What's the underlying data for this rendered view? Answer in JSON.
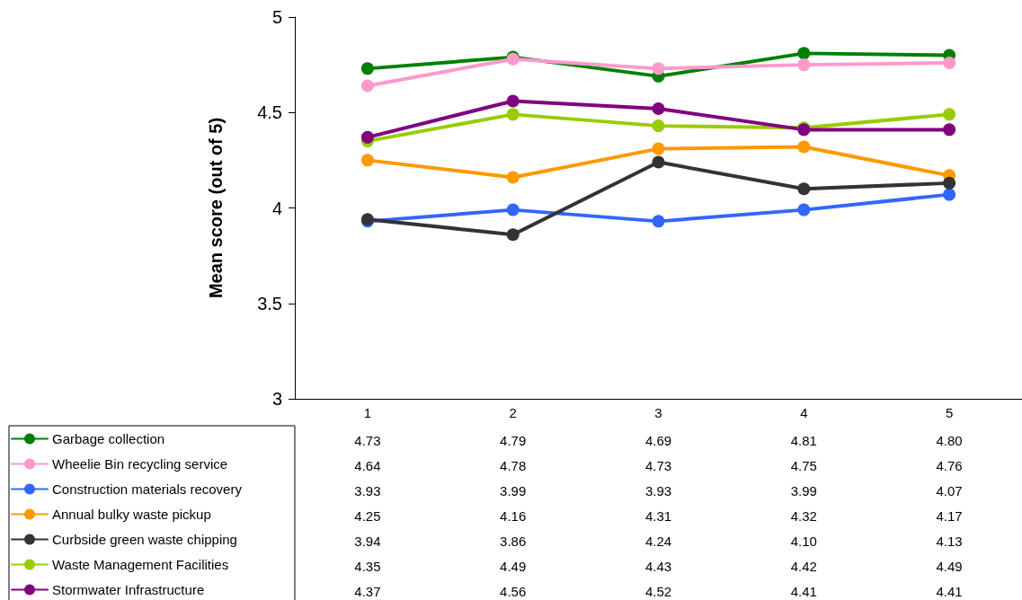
{
  "chart_data": {
    "type": "line",
    "ylabel": "Mean score (out of 5)",
    "categories": [
      "1",
      "2",
      "3",
      "4",
      "5"
    ],
    "ylim": [
      3,
      5
    ],
    "yticks": [
      3,
      3.5,
      4,
      4.5,
      5
    ],
    "grid": false,
    "legend": "bottom left",
    "marker": "circle",
    "line_style": "solid",
    "series": [
      {
        "name": "Garbage collection",
        "color": "#008000",
        "values": [
          4.73,
          4.79,
          4.69,
          4.81,
          4.8
        ],
        "value_labels": [
          "4.73",
          "4.79",
          "4.69",
          "4.81",
          "4.80"
        ]
      },
      {
        "name": "Wheelie Bin recycling service",
        "color": "#ff99cc",
        "values": [
          4.64,
          4.78,
          4.73,
          4.75,
          4.76
        ],
        "value_labels": [
          "4.64",
          "4.78",
          "4.73",
          "4.75",
          "4.76"
        ]
      },
      {
        "name": "Construction materials recovery",
        "color": "#3366ff",
        "values": [
          3.93,
          3.99,
          3.93,
          3.99,
          4.07
        ],
        "value_labels": [
          "3.93",
          "3.99",
          "3.93",
          "3.99",
          "4.07"
        ]
      },
      {
        "name": "Annual bulky waste pickup",
        "color": "#ff9900",
        "values": [
          4.25,
          4.16,
          4.31,
          4.32,
          4.17
        ],
        "value_labels": [
          "4.25",
          "4.16",
          "4.31",
          "4.32",
          "4.17"
        ]
      },
      {
        "name": "Curbside green waste chipping",
        "color": "#333333",
        "values": [
          3.94,
          3.86,
          4.24,
          4.1,
          4.13
        ],
        "value_labels": [
          "3.94",
          "3.86",
          "4.24",
          "4.10",
          "4.13"
        ]
      },
      {
        "name": "Waste Management Facilities",
        "color": "#99cc00",
        "values": [
          4.35,
          4.49,
          4.43,
          4.42,
          4.49
        ],
        "value_labels": [
          "4.35",
          "4.49",
          "4.43",
          "4.42",
          "4.49"
        ]
      },
      {
        "name": "Stormwater Infrastructure",
        "color": "#800080",
        "values": [
          4.37,
          4.56,
          4.52,
          4.41,
          4.41
        ],
        "value_labels": [
          "4.37",
          "4.56",
          "4.52",
          "4.41",
          "4.41"
        ]
      }
    ]
  }
}
